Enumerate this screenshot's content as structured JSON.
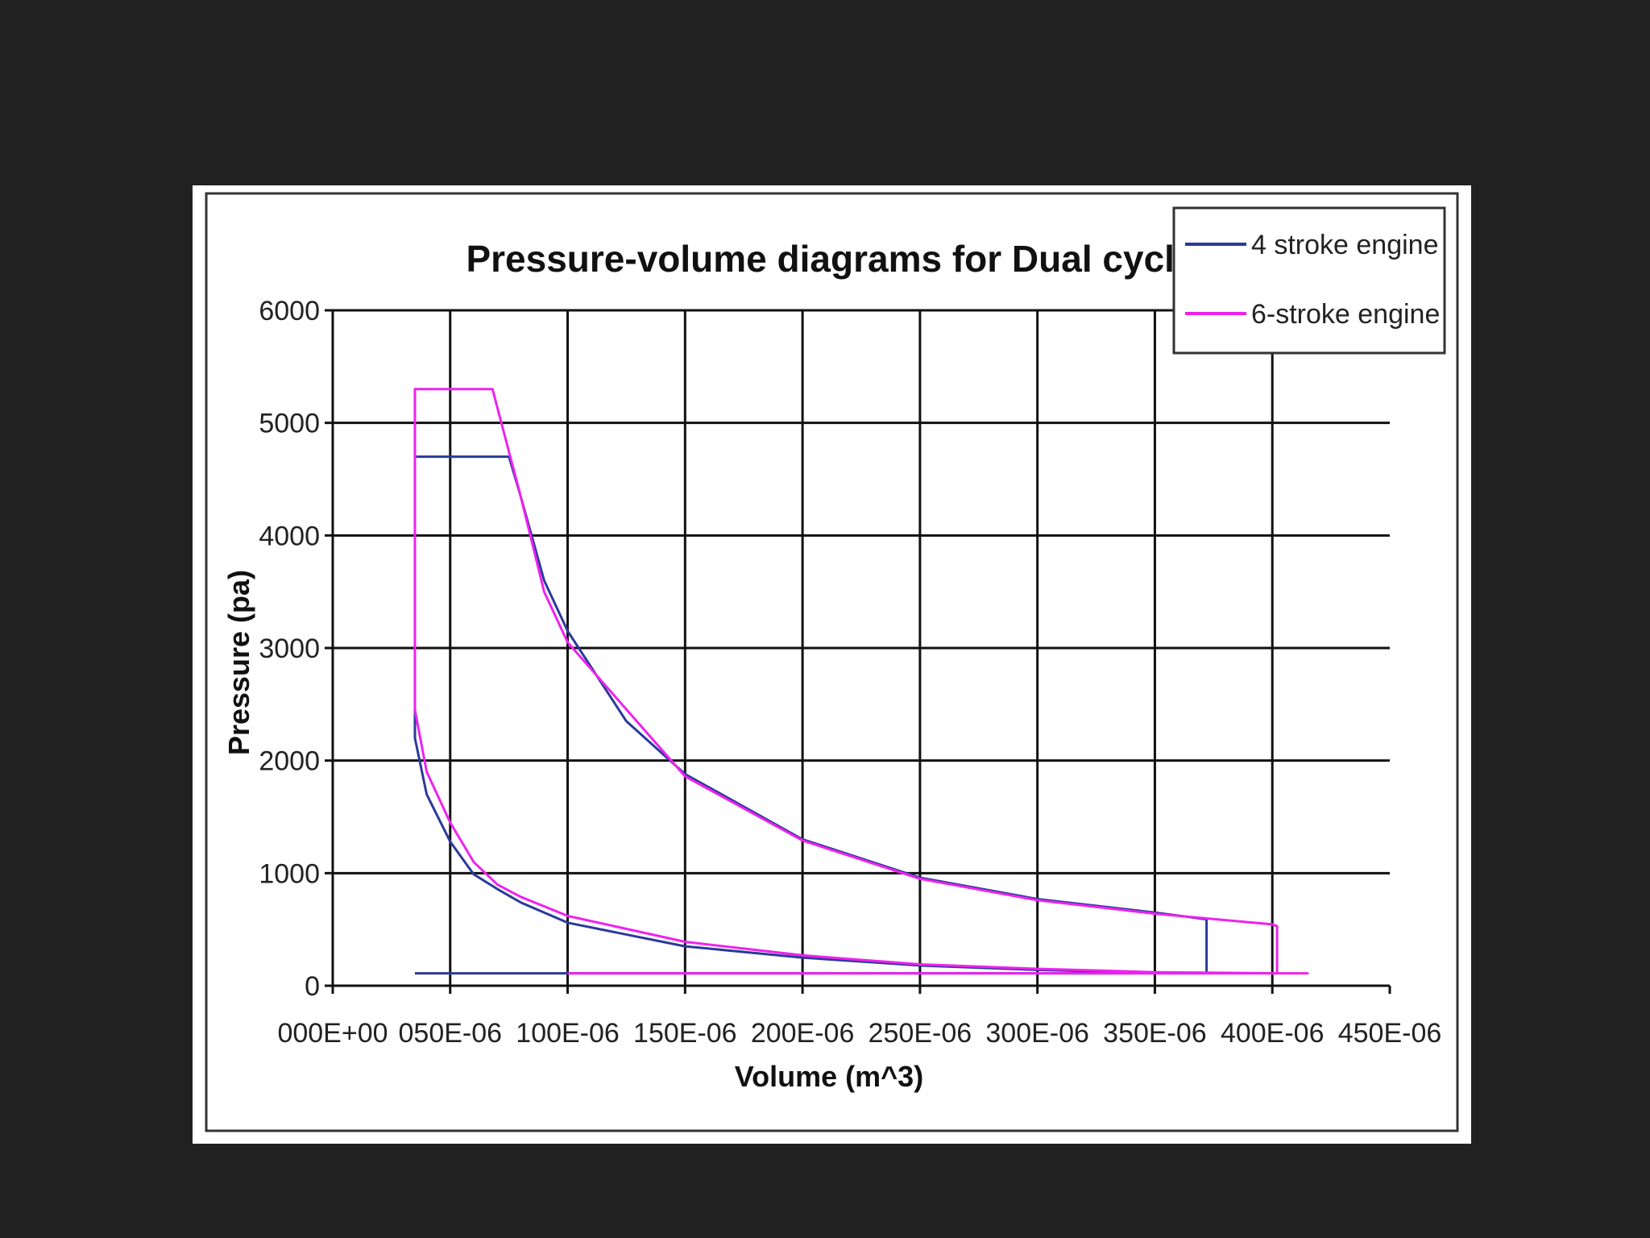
{
  "chart_data": {
    "type": "line",
    "title": "Pressure-volume diagrams for Dual cycle",
    "xlabel": "Volume (m^3)",
    "ylabel": "Pressure (pa)",
    "xlim": [
      0,
      0.00045
    ],
    "ylim": [
      0,
      6000
    ],
    "x_tick_values": [
      0,
      5e-05,
      0.0001,
      0.00015,
      0.0002,
      0.00025,
      0.0003,
      0.00035,
      0.0004,
      0.00045
    ],
    "x_tick_labels": [
      "000E+00",
      "050E-06",
      "100E-06",
      "150E-06",
      "200E-06",
      "250E-06",
      "300E-06",
      "350E-06",
      "400E-06",
      "450E-06"
    ],
    "y_tick_values": [
      0,
      1000,
      2000,
      3000,
      4000,
      5000,
      6000
    ],
    "y_tick_labels": [
      "0",
      "1000",
      "2000",
      "3000",
      "4000",
      "5000",
      "6000"
    ],
    "grid": true,
    "legend_position": "top-right",
    "series": [
      {
        "name": "4 stroke engine",
        "color": "#2b3a9a",
        "points": [
          [
            3.5e-05,
            110
          ],
          [
            0.000105,
            110
          ],
          [
            0.000105,
            110
          ],
          [
            0.000372,
            110
          ],
          [
            0.000372,
            590
          ],
          [
            0.00035,
            650
          ],
          [
            0.0003,
            770
          ],
          [
            0.00025,
            960
          ],
          [
            0.0002,
            1300
          ],
          [
            0.00015,
            1880
          ],
          [
            0.000125,
            2350
          ],
          [
            0.0001,
            3150
          ],
          [
            9e-05,
            3600
          ],
          [
            8e-05,
            4350
          ],
          [
            7.5e-05,
            4700
          ],
          [
            3.5e-05,
            4700
          ],
          [
            3.5e-05,
            2200
          ],
          [
            4e-05,
            1700
          ],
          [
            5e-05,
            1280
          ],
          [
            6e-05,
            990
          ],
          [
            7e-05,
            860
          ],
          [
            8e-05,
            740
          ],
          [
            0.0001,
            560
          ],
          [
            0.00015,
            350
          ],
          [
            0.0002,
            250
          ],
          [
            0.00025,
            180
          ],
          [
            0.0003,
            140
          ],
          [
            0.00035,
            115
          ],
          [
            0.000372,
            110
          ]
        ]
      },
      {
        "name": "6-stroke engine",
        "color": "#ee22ee",
        "points": [
          [
            0.0001,
            110
          ],
          [
            0.000415,
            110
          ],
          [
            0.000402,
            110
          ],
          [
            0.000402,
            530
          ],
          [
            0.0004,
            545
          ],
          [
            0.00035,
            640
          ],
          [
            0.0003,
            760
          ],
          [
            0.00025,
            950
          ],
          [
            0.0002,
            1290
          ],
          [
            0.00015,
            1860
          ],
          [
            0.0001,
            3050
          ],
          [
            9e-05,
            3500
          ],
          [
            8e-05,
            4350
          ],
          [
            6.8e-05,
            5300
          ],
          [
            3.5e-05,
            5300
          ],
          [
            3.5e-05,
            2450
          ],
          [
            4e-05,
            1900
          ],
          [
            5e-05,
            1450
          ],
          [
            6e-05,
            1100
          ],
          [
            7e-05,
            900
          ],
          [
            8e-05,
            790
          ],
          [
            0.0001,
            620
          ],
          [
            0.00015,
            390
          ],
          [
            0.0002,
            270
          ],
          [
            0.00025,
            190
          ],
          [
            0.0003,
            150
          ],
          [
            0.00035,
            120
          ],
          [
            0.000402,
            110
          ]
        ]
      }
    ]
  }
}
